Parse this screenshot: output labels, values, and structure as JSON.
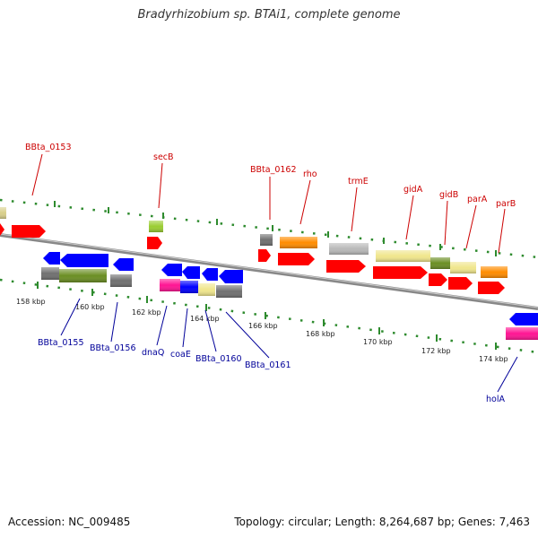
{
  "title": "Bradyrhizobium sp. BTAi1, complete genome",
  "footer": {
    "accession": "Accession: NC_009485",
    "topology": "Topology: circular; Length: 8,264,687 bp; Genes: 7,463"
  },
  "scale": {
    "ticks": [
      "158 kbp",
      "160 kbp",
      "162 kbp",
      "164 kbp",
      "166 kbp",
      "168 kbp",
      "170 kbp",
      "172 kbp",
      "174 kbp"
    ]
  },
  "colors": {
    "forward_label": "#cc0000",
    "reverse_label": "#000099",
    "backbone": "#888888",
    "tick_marks": "#228b22",
    "gene_red": "#ff0000",
    "gene_blue": "#0000ff",
    "gene_orange": "#ff8c00",
    "gene_khaki": "#f0e68c",
    "gene_olive": "#6b8e23",
    "gene_gray": "#7a7a7a",
    "gene_silver": "#b8b8b8",
    "gene_magenta": "#ff1493",
    "gene_lime": "#9acd32"
  },
  "forward_labels": [
    "BBta_0153",
    "secB",
    "BBta_0162",
    "rho",
    "trmE",
    "gidA",
    "gidB",
    "parA",
    "parB"
  ],
  "reverse_labels": [
    "BBta_0155",
    "BBta_0156",
    "dnaQ",
    "coaE",
    "BBta_0160",
    "BBta_0161",
    "holA"
  ]
}
